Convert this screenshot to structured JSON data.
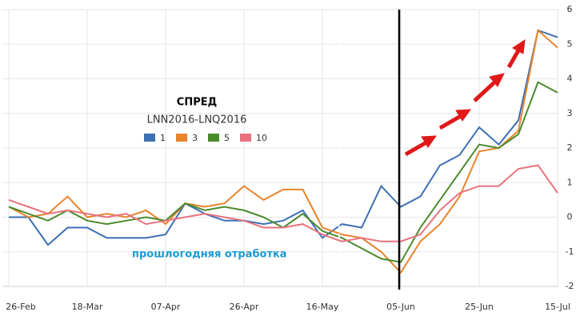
{
  "chart_data": {
    "type": "line",
    "title": "СПРЕД",
    "subtitle": "LNN2016-LNQ2016",
    "annotation": "прошлогодняя отработка",
    "categories": [
      "26-Feb",
      null,
      null,
      null,
      "18-Mar",
      null,
      null,
      null,
      "07-Apr",
      null,
      null,
      null,
      "26-Apr",
      null,
      null,
      null,
      "16-May",
      null,
      null,
      null,
      "05-Jun",
      null,
      null,
      null,
      "25-Jun",
      null,
      null,
      null,
      "15-Jul"
    ],
    "series": [
      {
        "name": "1",
        "color": "#3d6fb4",
        "values": [
          0.0,
          0.0,
          -0.8,
          -0.3,
          -0.3,
          -0.6,
          -0.6,
          -0.6,
          -0.5,
          0.4,
          0.1,
          -0.1,
          -0.1,
          -0.2,
          -0.1,
          0.2,
          -0.6,
          -0.2,
          -0.3,
          0.9,
          0.3,
          0.6,
          1.5,
          1.8,
          2.6,
          2.1,
          2.8,
          5.4,
          5.2
        ]
      },
      {
        "name": "3",
        "color": "#e8842c",
        "values": [
          0.3,
          0.0,
          0.1,
          0.6,
          0.0,
          0.1,
          0.0,
          0.2,
          -0.2,
          0.4,
          0.3,
          0.4,
          0.9,
          0.5,
          0.8,
          0.8,
          -0.3,
          -0.5,
          -0.6,
          -1.0,
          -1.6,
          -0.7,
          -0.2,
          0.6,
          1.9,
          2.0,
          2.5,
          5.4,
          4.9
        ]
      },
      {
        "name": "5",
        "color": "#4b8a2c",
        "values": [
          0.3,
          0.1,
          -0.1,
          0.2,
          -0.1,
          -0.2,
          -0.1,
          0.0,
          -0.1,
          0.4,
          0.2,
          0.3,
          0.2,
          0.0,
          -0.3,
          0.1,
          -0.4,
          -0.6,
          -0.9,
          -1.2,
          -1.3,
          -0.3,
          0.5,
          1.3,
          2.1,
          2.0,
          2.4,
          3.9,
          3.6
        ]
      },
      {
        "name": "10",
        "color": "#e8727e",
        "values": [
          0.5,
          0.3,
          0.1,
          0.2,
          0.1,
          0.0,
          0.1,
          -0.2,
          -0.1,
          0.0,
          0.1,
          0.0,
          -0.1,
          -0.3,
          -0.3,
          -0.2,
          -0.5,
          -0.7,
          -0.6,
          -0.7,
          -0.7,
          -0.5,
          0.2,
          0.7,
          0.9,
          0.9,
          1.4,
          1.5,
          0.7
        ]
      }
    ],
    "ylim": [
      -2,
      6
    ],
    "yticks": [
      -2,
      -1,
      0,
      1,
      2,
      3,
      4,
      5,
      6
    ],
    "grid": true
  }
}
